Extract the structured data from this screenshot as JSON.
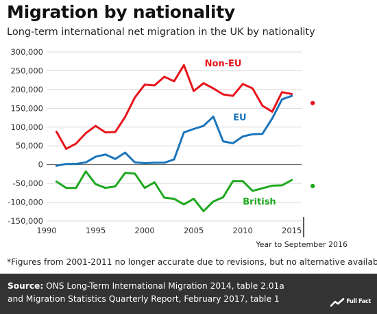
{
  "title": "Migration by nationality",
  "subtitle": "Long-term international net migration in the UK by nationality",
  "footnote": "*Figures from 2001-2011 no longer accurate due to revisions, but no alternative available",
  "source": {
    "label": "Source:",
    "line1": " ONS Long-Term International Migration 2014, table 2.01a",
    "line2": "and Migration Statistics Quarterly Report, February 2017, table 1"
  },
  "logo": {
    "text": "Full Fact"
  },
  "colors": {
    "non_eu": "#e8141c",
    "eu": "#1a75bb",
    "british": "#1fa81f"
  },
  "chart_data": {
    "type": "line",
    "x_ticks": [
      1990,
      1995,
      2000,
      2005,
      2010,
      2015
    ],
    "y_ticks": [
      300000,
      250000,
      200000,
      150000,
      100000,
      50000,
      0,
      -50000,
      -100000,
      -150000
    ],
    "y_tick_labels": [
      "300,000",
      "250,000",
      "200,000",
      "150,000",
      "100,000",
      "50,000",
      "0",
      "-50,000",
      "-100,000",
      "-150,000"
    ],
    "x_tick_labels": [
      "1990",
      "1995",
      "2000",
      "2005",
      "2010",
      "2015"
    ],
    "xlim": [
      1990,
      2016
    ],
    "ylim": [
      -150000,
      300000
    ],
    "x": [
      1991,
      1992,
      1993,
      1994,
      1995,
      1996,
      1997,
      1998,
      1999,
      2000,
      2001,
      2002,
      2003,
      2004,
      2005,
      2006,
      2007,
      2008,
      2009,
      2010,
      2011,
      2012,
      2013,
      2014,
      2015
    ],
    "series": [
      {
        "name": "Non-EU",
        "color": "#e8141c",
        "values": [
          88000,
          42000,
          56000,
          84000,
          103000,
          86000,
          87000,
          127000,
          179000,
          213000,
          211000,
          234000,
          222000,
          265000,
          196000,
          217000,
          203000,
          187000,
          183000,
          215000,
          203000,
          157000,
          141000,
          193000,
          188000
        ]
      },
      {
        "name": "EU",
        "color": "#1a75bb",
        "values": [
          -3000,
          2000,
          2000,
          6000,
          21000,
          27000,
          15000,
          32000,
          6000,
          4000,
          5000,
          5000,
          14000,
          86000,
          95000,
          103000,
          128000,
          62000,
          57000,
          75000,
          81000,
          82000,
          123000,
          174000,
          183000
        ]
      },
      {
        "name": "British",
        "color": "#1fa81f",
        "values": [
          -45000,
          -62000,
          -62000,
          -18000,
          -52000,
          -62000,
          -58000,
          -22000,
          -24000,
          -62000,
          -47000,
          -88000,
          -91000,
          -106000,
          -91000,
          -124000,
          -98000,
          -87000,
          -44000,
          -44000,
          -70000,
          -63000,
          -56000,
          -55000,
          -41000
        ]
      }
    ],
    "year_to_sep_2016": {
      "label": "Year to September 2016",
      "x": 2016.5,
      "values": {
        "Non-EU": 164000,
        "British": -57000
      }
    }
  }
}
